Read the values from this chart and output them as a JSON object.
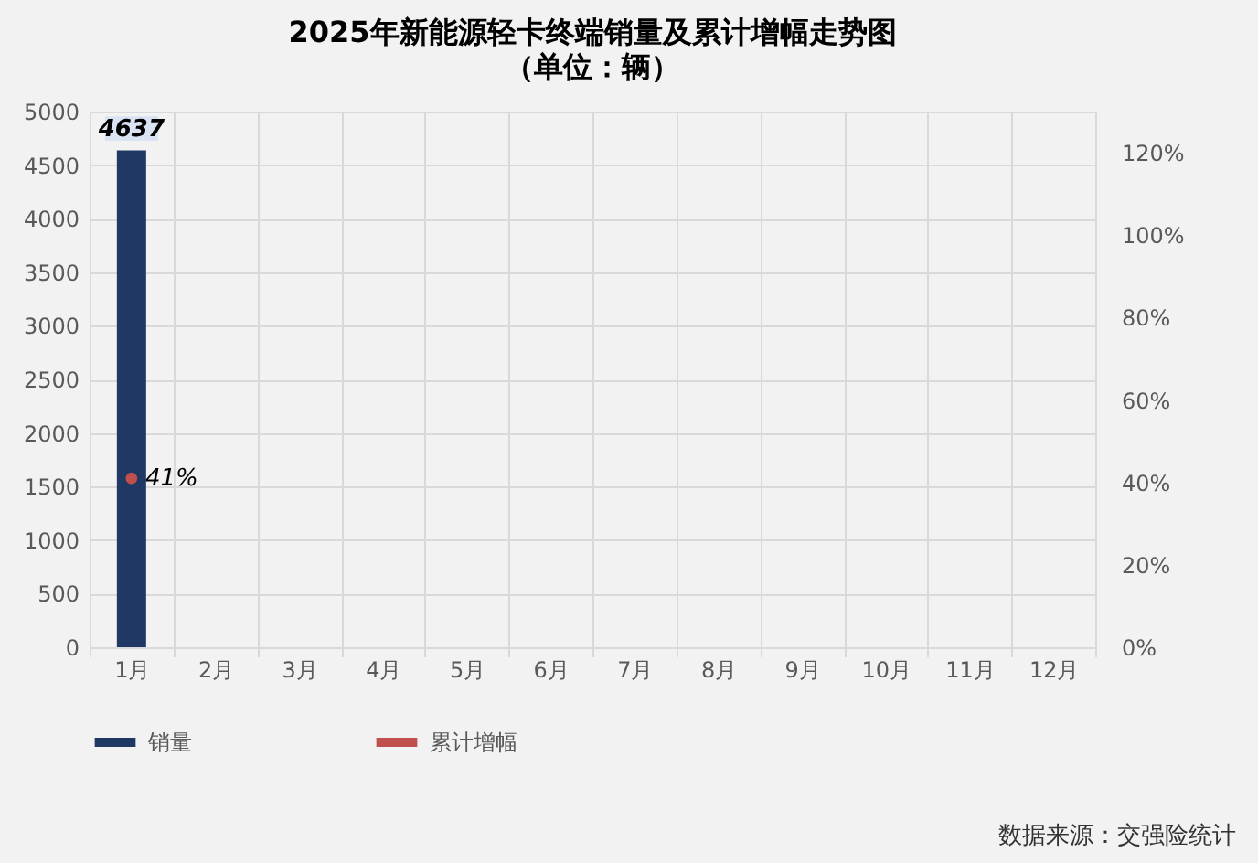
{
  "chart_data": {
    "type": "bar",
    "title": "2025年新能源轻卡终端销量及累计增幅走势图",
    "subtitle": "（单位：辆）",
    "categories": [
      "1月",
      "2月",
      "3月",
      "4月",
      "5月",
      "6月",
      "7月",
      "8月",
      "9月",
      "10月",
      "11月",
      "12月"
    ],
    "series": [
      {
        "name": "销量",
        "color": "#1f3864",
        "values": [
          4637,
          null,
          null,
          null,
          null,
          null,
          null,
          null,
          null,
          null,
          null,
          null
        ],
        "value_labels": [
          "4637",
          null,
          null,
          null,
          null,
          null,
          null,
          null,
          null,
          null,
          null,
          null
        ]
      },
      {
        "name": "累计增幅",
        "type": "line",
        "axis": "y2",
        "marker": "circle",
        "color": "#c0504d",
        "values": [
          41,
          null,
          null,
          null,
          null,
          null,
          null,
          null,
          null,
          null,
          null,
          null
        ],
        "value_labels": [
          "41%",
          null,
          null,
          null,
          null,
          null,
          null,
          null,
          null,
          null,
          null,
          null
        ]
      }
    ],
    "ylim": [
      0,
      5000
    ],
    "yticks": [
      0,
      500,
      1000,
      1500,
      2000,
      2500,
      3000,
      3500,
      4000,
      4500,
      5000
    ],
    "y2lim": [
      0,
      130
    ],
    "y2ticks": [
      {
        "value": 0,
        "label": "0%"
      },
      {
        "value": 20,
        "label": "20%"
      },
      {
        "value": 40,
        "label": "40%"
      },
      {
        "value": 60,
        "label": "60%"
      },
      {
        "value": 80,
        "label": "80%"
      },
      {
        "value": 100,
        "label": "100%"
      },
      {
        "value": 120,
        "label": "120%"
      }
    ],
    "grid": true,
    "legend": "bottom",
    "annotations": [
      "数据来源：交强险统计"
    ]
  }
}
